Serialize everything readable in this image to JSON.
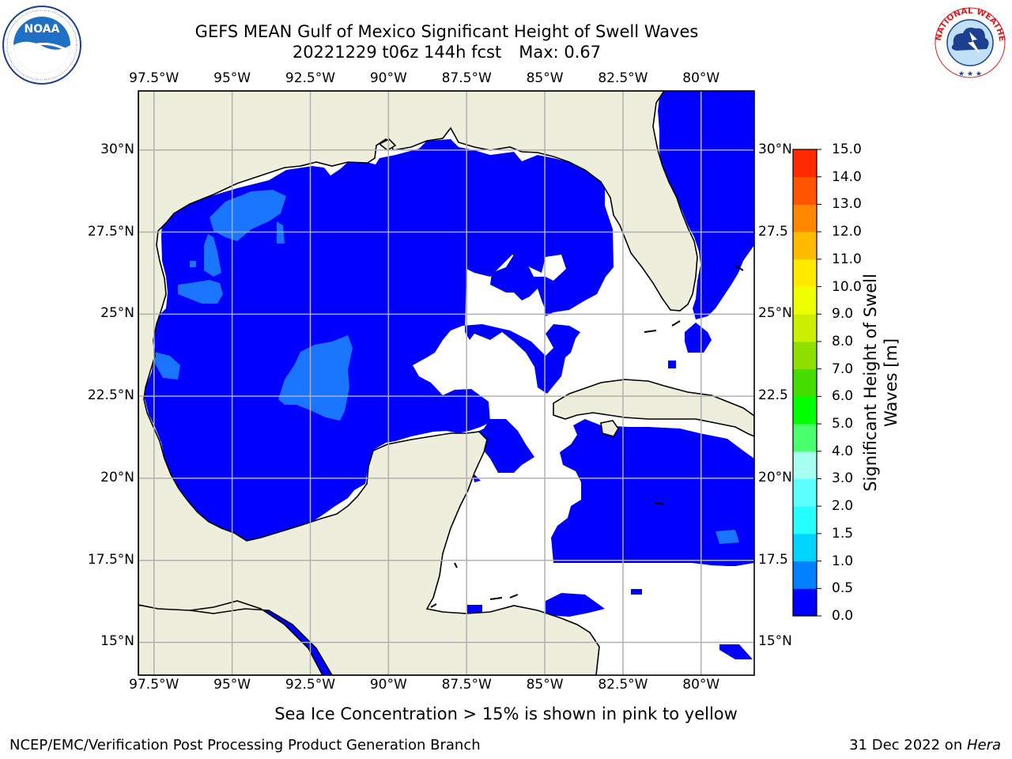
{
  "title": {
    "line1": "GEFS MEAN Gulf of Mexico Significant Height of Swell Waves",
    "run": "20221229 t06z 144h fcst",
    "max": "Max: 0.67"
  },
  "map": {
    "x_ticks": [
      "97.5°W",
      "95°W",
      "92.5°W",
      "90°W",
      "87.5°W",
      "85°W",
      "82.5°W",
      "80°W"
    ],
    "y_ticks": [
      "30°N",
      "27.5°N",
      "25°N",
      "22.5°N",
      "20°N",
      "17.5°N",
      "15°N"
    ],
    "y_ticks_right": [
      "30°N",
      "27.5",
      "25°N",
      "22.5",
      "20°N",
      "17.5",
      "15°N"
    ],
    "lon_range": [
      -98,
      -78.3
    ],
    "lat_range": [
      14,
      31.8
    ],
    "colors": {
      "land": "#eeeedd",
      "ocean_low": "#0000ff",
      "ocean_mid": "#1a75ff",
      "grid": "#b0b0b0"
    }
  },
  "colorbar": {
    "label": "Significant Height of Swell Waves [m]",
    "label_line1": "Significant Height of Swell",
    "label_line2": "Waves [m]",
    "ticks": [
      "0.0",
      "0.5",
      "1.0",
      "1.5",
      "2.0",
      "3.0",
      "4.0",
      "5.0",
      "6.0",
      "7.0",
      "8.0",
      "9.0",
      "10.0",
      "11.0",
      "12.0",
      "13.0",
      "14.0",
      "15.0"
    ],
    "colors": [
      "#0000ff",
      "#0080ff",
      "#00d5ff",
      "#26ffff",
      "#5dffff",
      "#a6fff0",
      "#4cff6e",
      "#00ff00",
      "#44dd00",
      "#8ee000",
      "#ccee00",
      "#eeff00",
      "#ffea00",
      "#ffbb00",
      "#ff8800",
      "#ff5500",
      "#ff2a00"
    ]
  },
  "note": "Sea Ice Concentration > 15% is shown in pink to yellow",
  "footer": {
    "left": "NCEP/EMC/Verification Post Processing Product Generation Branch",
    "date": "31 Dec 2022 on ",
    "machine": "Hera"
  },
  "logos": {
    "noaa": "NOAA",
    "nws": "NATIONAL WEATHER SERVICE"
  }
}
